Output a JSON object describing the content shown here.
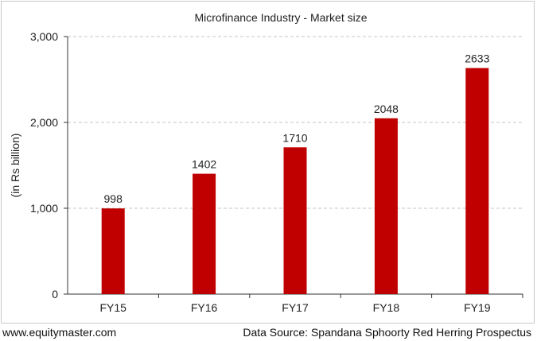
{
  "chart_data": {
    "type": "bar",
    "title": "Microfinance Industry - Market size",
    "ylabel": "(in Rs billion)",
    "xlabel": "",
    "categories": [
      "FY15",
      "FY16",
      "FY17",
      "FY18",
      "FY19"
    ],
    "values": [
      998,
      1402,
      1710,
      2048,
      2633
    ],
    "data_labels": [
      "998",
      "1402",
      "1710",
      "2048",
      "2633"
    ],
    "ylim": [
      0,
      3000
    ],
    "yticks": [
      0,
      1000,
      2000,
      3000
    ],
    "ytick_labels": [
      "0",
      "1,000",
      "2,000",
      "3,000"
    ],
    "grid": "horizontal dashed",
    "legend": "none",
    "bar_color": "#c00000"
  },
  "footer": {
    "site": "www.equitymaster.com",
    "source": "Data Source: Spandana Sphoorty Red Herring Prospectus"
  }
}
